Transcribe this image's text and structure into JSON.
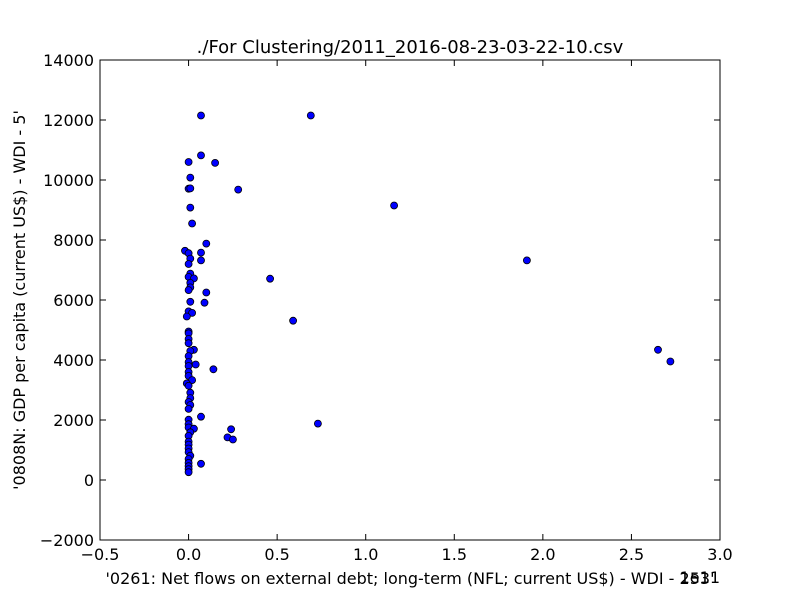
{
  "chart_data": {
    "type": "scatter",
    "title": "./For Clustering/2011_2016-08-23-03-22-10.csv",
    "xlabel": "'0261: Net flows on external debt; long-term  (NFL; current US$) - WDI - 253'",
    "ylabel": "'0808N: GDP per capita  (current US$) - WDI - 5'",
    "x_offset_label": "1e11",
    "x_scale": 100000000000.0,
    "xlim": [
      -0.5,
      3.0
    ],
    "ylim": [
      -2000,
      14000
    ],
    "xticks": [
      -0.5,
      0.0,
      0.5,
      1.0,
      1.5,
      2.0,
      2.5,
      3.0
    ],
    "xtick_labels": [
      "−0.5",
      "0.0",
      "0.5",
      "1.0",
      "1.5",
      "2.0",
      "2.5",
      "3.0"
    ],
    "yticks": [
      -2000,
      0,
      2000,
      4000,
      6000,
      8000,
      10000,
      12000,
      14000
    ],
    "ytick_labels": [
      "−2000",
      "0",
      "2000",
      "4000",
      "6000",
      "8000",
      "10000",
      "12000",
      "14000"
    ],
    "grid": false,
    "marker_color": "#0000ff",
    "points": [
      [
        0.07,
        12150
      ],
      [
        0.69,
        12150
      ],
      [
        0.07,
        10820
      ],
      [
        0.15,
        10570
      ],
      [
        0.0,
        10600
      ],
      [
        0.01,
        10080
      ],
      [
        0.0,
        9710
      ],
      [
        0.01,
        9720
      ],
      [
        0.28,
        9680
      ],
      [
        0.01,
        9080
      ],
      [
        1.16,
        9150
      ],
      [
        0.02,
        8550
      ],
      [
        0.1,
        7880
      ],
      [
        -0.02,
        7640
      ],
      [
        0.0,
        7560
      ],
      [
        0.07,
        7580
      ],
      [
        0.01,
        7380
      ],
      [
        1.91,
        7320
      ],
      [
        0.07,
        7320
      ],
      [
        0.0,
        7200
      ],
      [
        0.01,
        6880
      ],
      [
        0.0,
        6770
      ],
      [
        0.03,
        6720
      ],
      [
        0.46,
        6710
      ],
      [
        0.01,
        6570
      ],
      [
        0.01,
        6420
      ],
      [
        0.0,
        6330
      ],
      [
        0.1,
        6250
      ],
      [
        0.01,
        5940
      ],
      [
        0.09,
        5910
      ],
      [
        0.0,
        5620
      ],
      [
        0.02,
        5570
      ],
      [
        -0.01,
        5450
      ],
      [
        0.59,
        5310
      ],
      [
        0.0,
        4950
      ],
      [
        0.0,
        4890
      ],
      [
        0.0,
        4700
      ],
      [
        0.0,
        4560
      ],
      [
        0.03,
        4340
      ],
      [
        0.01,
        4300
      ],
      [
        0.0,
        4130
      ],
      [
        2.65,
        4340
      ],
      [
        2.72,
        3950
      ],
      [
        0.0,
        3930
      ],
      [
        0.04,
        3850
      ],
      [
        0.0,
        3800
      ],
      [
        0.0,
        3600
      ],
      [
        0.14,
        3690
      ],
      [
        0.0,
        3470
      ],
      [
        0.02,
        3330
      ],
      [
        -0.01,
        3220
      ],
      [
        0.0,
        3140
      ],
      [
        0.01,
        2910
      ],
      [
        0.01,
        2730
      ],
      [
        0.0,
        2600
      ],
      [
        0.01,
        2500
      ],
      [
        0.0,
        2370
      ],
      [
        0.07,
        2110
      ],
      [
        0.0,
        2010
      ],
      [
        0.0,
        1860
      ],
      [
        0.73,
        1880
      ],
      [
        0.0,
        1750
      ],
      [
        0.03,
        1710
      ],
      [
        0.24,
        1690
      ],
      [
        0.01,
        1590
      ],
      [
        0.0,
        1470
      ],
      [
        0.22,
        1420
      ],
      [
        0.25,
        1350
      ],
      [
        0.0,
        1280
      ],
      [
        0.0,
        1180
      ],
      [
        0.0,
        1050
      ],
      [
        0.0,
        930
      ],
      [
        0.01,
        810
      ],
      [
        0.0,
        700
      ],
      [
        0.07,
        540
      ],
      [
        0.0,
        570
      ],
      [
        0.0,
        460
      ],
      [
        0.0,
        360
      ],
      [
        0.0,
        260
      ]
    ]
  }
}
